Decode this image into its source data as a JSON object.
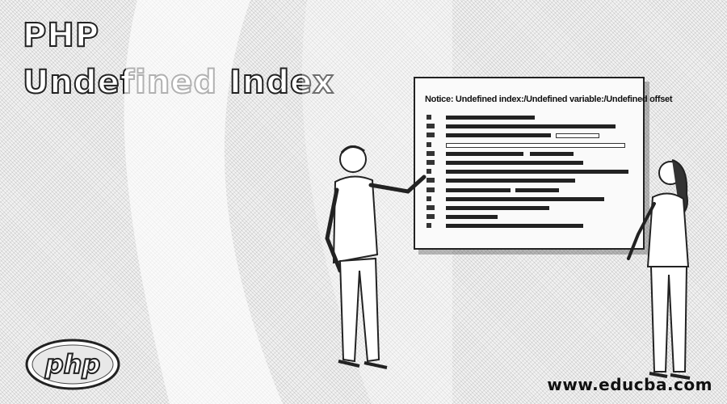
{
  "title": {
    "line1": "PHP",
    "line2": "Undefined Index"
  },
  "board": {
    "notice": "Notice: Undefined index:/Undefined variable:/Undefined offset",
    "rows": 12
  },
  "logo": {
    "text": "php"
  },
  "website": "www.educba.com",
  "colors": {
    "ink": "#222222",
    "paper": "#fafafa",
    "title_fill": "#ffffff"
  }
}
